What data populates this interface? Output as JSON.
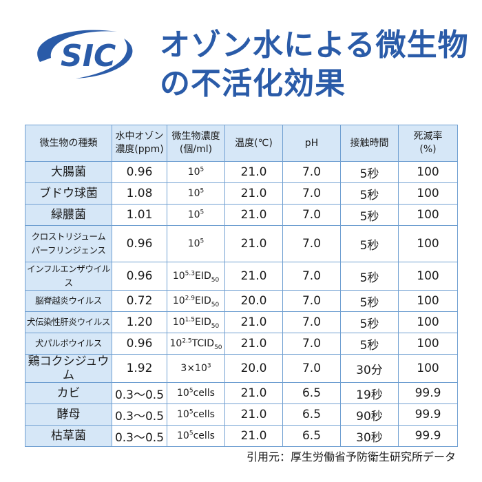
{
  "logo": {
    "text": "SIC",
    "color": "#2a5ba8"
  },
  "title": {
    "line1": "オゾン水による微生物",
    "line2": "の不活化効果",
    "color": "#2a5ba8"
  },
  "table": {
    "headers": {
      "organism": "微生物の種類",
      "ozone_line1": "水中オゾン",
      "ozone_line2": "濃度(ppm)",
      "density_line1": "微生物濃度",
      "density_line2": "(個/ml)",
      "temperature": "温度(℃)",
      "ph": "pH",
      "contact_time": "接触時間",
      "kill_rate_line1": "死滅率",
      "kill_rate_line2": "(%)"
    },
    "rows": [
      {
        "organism": "大腸菌",
        "ozone": "0.96",
        "density": {
          "base": "10",
          "exp": "5",
          "unit": "",
          "sub": ""
        },
        "temp": "21.0",
        "ph": "7.0",
        "time": "5秒",
        "rate": "100"
      },
      {
        "organism": "ブドウ球菌",
        "ozone": "1.08",
        "density": {
          "base": "10",
          "exp": "5",
          "unit": "",
          "sub": ""
        },
        "temp": "21.0",
        "ph": "7.0",
        "time": "5秒",
        "rate": "100"
      },
      {
        "organism": "緑膿菌",
        "ozone": "1.01",
        "density": {
          "base": "10",
          "exp": "5",
          "unit": "",
          "sub": ""
        },
        "temp": "21.0",
        "ph": "7.0",
        "time": "5秒",
        "rate": "100"
      },
      {
        "organism_line1": "クロストリジューム",
        "organism_line2": "パーフリンジェンス",
        "ozone": "0.96",
        "density": {
          "base": "10",
          "exp": "5",
          "unit": "",
          "sub": ""
        },
        "temp": "21.0",
        "ph": "7.0",
        "time": "5秒",
        "rate": "100"
      },
      {
        "organism": "インフルエンザウイルス",
        "ozone": "0.96",
        "density": {
          "base": "10",
          "exp": "5.3",
          "unit": "EID",
          "sub": "50"
        },
        "temp": "21.0",
        "ph": "7.0",
        "time": "5秒",
        "rate": "100"
      },
      {
        "organism": "脳脊越炎ウイルス",
        "ozone": "0.72",
        "density": {
          "base": "10",
          "exp": "2.9",
          "unit": "EID",
          "sub": "50"
        },
        "temp": "20.0",
        "ph": "7.0",
        "time": "5秒",
        "rate": "100"
      },
      {
        "organism": "犬伝染性肝炎ウイルス",
        "ozone": "1.20",
        "density": {
          "base": "10",
          "exp": "1.5",
          "unit": "EID",
          "sub": "50"
        },
        "temp": "21.0",
        "ph": "7.0",
        "time": "5秒",
        "rate": "100"
      },
      {
        "organism": "犬パルボウイルス",
        "ozone": "0.96",
        "density": {
          "base": "10",
          "exp": "2.5",
          "unit": "TCID",
          "sub": "50"
        },
        "temp": "21.0",
        "ph": "7.0",
        "time": "5秒",
        "rate": "100"
      },
      {
        "organism": "鶏コクシジュウム",
        "ozone": "1.92",
        "density": {
          "base": "3×10",
          "exp": "3",
          "unit": "",
          "sub": ""
        },
        "temp": "20.0",
        "ph": "7.0",
        "time": "30分",
        "rate": "100"
      },
      {
        "organism": "カビ",
        "ozone": "0.3～0.5",
        "density": {
          "base": "10",
          "exp": "5",
          "unit": "cells",
          "sub": ""
        },
        "temp": "21.0",
        "ph": "6.5",
        "time": "19秒",
        "rate": "99.9"
      },
      {
        "organism": "酵母",
        "ozone": "0.3～0.5",
        "density": {
          "base": "10",
          "exp": "5",
          "unit": "cells",
          "sub": ""
        },
        "temp": "21.0",
        "ph": "6.5",
        "time": "90秒",
        "rate": "99.9"
      },
      {
        "organism": "枯草菌",
        "ozone": "0.3～0.5",
        "density": {
          "base": "10",
          "exp": "5",
          "unit": "cells",
          "sub": ""
        },
        "temp": "21.0",
        "ph": "6.5",
        "time": "30秒",
        "rate": "99.9"
      }
    ]
  },
  "source": "引用元：厚生労働省予防衛生研究所データ"
}
